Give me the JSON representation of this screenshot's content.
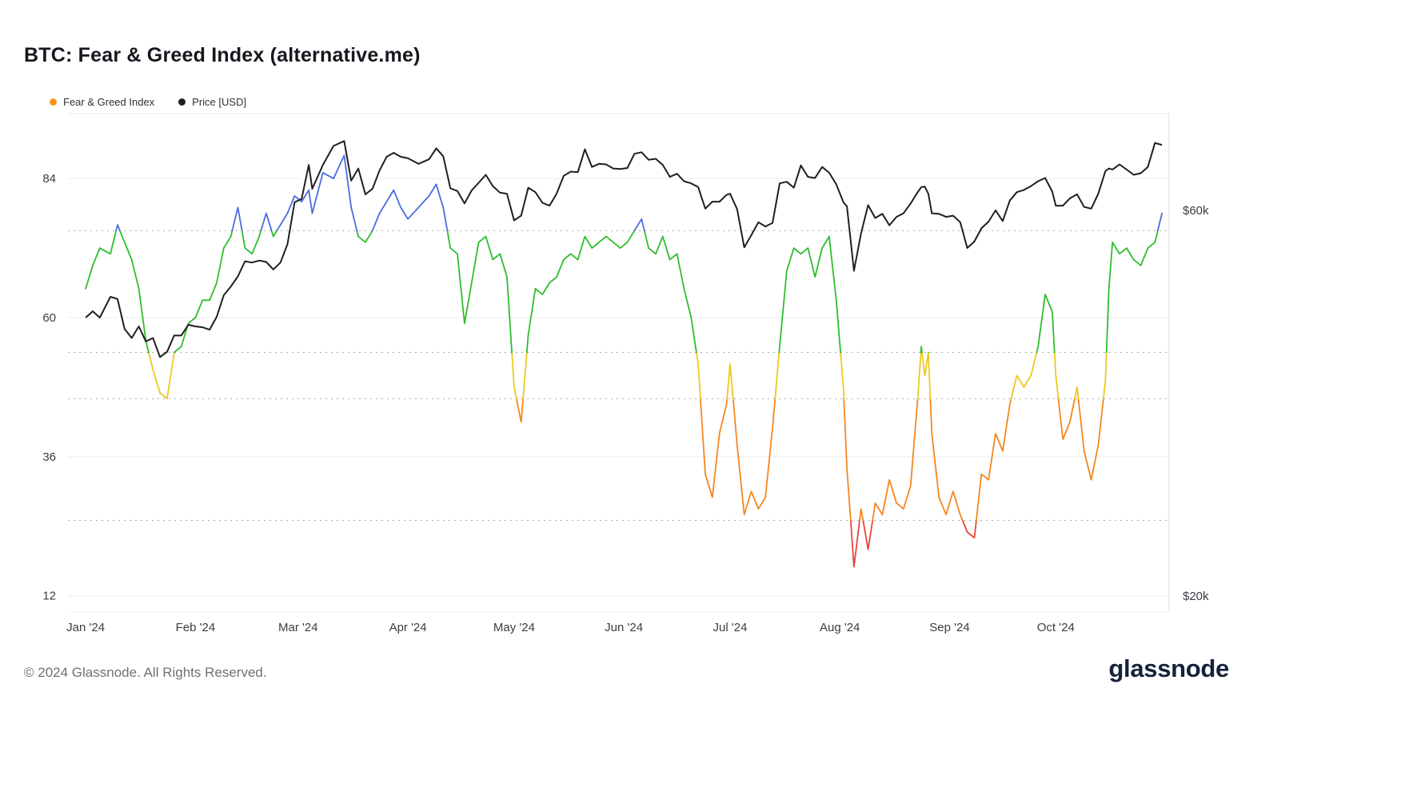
{
  "header": {
    "title": "BTC: Fear & Greed Index (alternative.me)"
  },
  "legend": {
    "items": [
      {
        "label": "Fear & Greed Index",
        "color": "#f7941d"
      },
      {
        "label": "Price [USD]",
        "color": "#1f1f1f"
      }
    ]
  },
  "footer": {
    "copyright": "© 2024 Glassnode. All Rights Reserved.",
    "brand": "glassnode"
  },
  "chart_data": {
    "type": "line",
    "title": "BTC: Fear & Greed Index (alternative.me)",
    "x_domain": [
      "2023-12-27",
      "2024-11-02"
    ],
    "x_ticks": [
      {
        "date": "2024-01-01",
        "label": "Jan '24"
      },
      {
        "date": "2024-02-01",
        "label": "Feb '24"
      },
      {
        "date": "2024-03-01",
        "label": "Mar '24"
      },
      {
        "date": "2024-04-01",
        "label": "Apr '24"
      },
      {
        "date": "2024-05-01",
        "label": "May '24"
      },
      {
        "date": "2024-06-01",
        "label": "Jun '24"
      },
      {
        "date": "2024-07-01",
        "label": "Jul '24"
      },
      {
        "date": "2024-08-01",
        "label": "Aug '24"
      },
      {
        "date": "2024-09-01",
        "label": "Sep '24"
      },
      {
        "date": "2024-10-01",
        "label": "Oct '24"
      }
    ],
    "left_axis": {
      "name": "Fear & Greed Index",
      "ticks": [
        84,
        60,
        36,
        12
      ],
      "range": [
        9.2,
        95.2
      ],
      "grid": "solid"
    },
    "right_axis": {
      "name": "Price [USD]",
      "scale": "log",
      "range_k": [
        19.1,
        79.05
      ],
      "ticks": [
        {
          "value_k": 60,
          "label": "$60k"
        },
        {
          "value_k": 20,
          "label": "$20k"
        }
      ]
    },
    "fgi_bands": {
      "thresholds": [
        25,
        46,
        54,
        75
      ],
      "band_order": [
        "extreme_fear",
        "fear",
        "neutral",
        "greed",
        "extreme_greed"
      ],
      "colors": {
        "extreme_fear": "#e8463c",
        "fear": "#f5861f",
        "neutral": "#eec81f",
        "greed": "#2dbe2d",
        "extreme_greed": "#4a6de0"
      }
    },
    "price_color": "#1f1f1f",
    "grid_color_solid": "#ececec",
    "grid_color_dotted": "#a8a8a8",
    "dates": [
      "2024-01-01",
      "2024-01-03",
      "2024-01-05",
      "2024-01-08",
      "2024-01-10",
      "2024-01-12",
      "2024-01-14",
      "2024-01-16",
      "2024-01-18",
      "2024-01-20",
      "2024-01-22",
      "2024-01-24",
      "2024-01-26",
      "2024-01-28",
      "2024-01-30",
      "2024-02-01",
      "2024-02-03",
      "2024-02-05",
      "2024-02-07",
      "2024-02-09",
      "2024-02-11",
      "2024-02-13",
      "2024-02-15",
      "2024-02-17",
      "2024-02-19",
      "2024-02-21",
      "2024-02-23",
      "2024-02-25",
      "2024-02-27",
      "2024-02-29",
      "2024-03-02",
      "2024-03-04",
      "2024-03-05",
      "2024-03-08",
      "2024-03-11",
      "2024-03-14",
      "2024-03-16",
      "2024-03-18",
      "2024-03-20",
      "2024-03-22",
      "2024-03-24",
      "2024-03-26",
      "2024-03-28",
      "2024-03-30",
      "2024-04-01",
      "2024-04-04",
      "2024-04-07",
      "2024-04-09",
      "2024-04-11",
      "2024-04-13",
      "2024-04-15",
      "2024-04-17",
      "2024-04-19",
      "2024-04-21",
      "2024-04-23",
      "2024-04-25",
      "2024-04-27",
      "2024-04-29",
      "2024-05-01",
      "2024-05-03",
      "2024-05-05",
      "2024-05-07",
      "2024-05-09",
      "2024-05-11",
      "2024-05-13",
      "2024-05-15",
      "2024-05-17",
      "2024-05-19",
      "2024-05-21",
      "2024-05-23",
      "2024-05-25",
      "2024-05-27",
      "2024-05-29",
      "2024-05-31",
      "2024-06-02",
      "2024-06-04",
      "2024-06-06",
      "2024-06-08",
      "2024-06-10",
      "2024-06-12",
      "2024-06-14",
      "2024-06-16",
      "2024-06-18",
      "2024-06-20",
      "2024-06-22",
      "2024-06-24",
      "2024-06-26",
      "2024-06-28",
      "2024-06-30",
      "2024-07-01",
      "2024-07-03",
      "2024-07-05",
      "2024-07-07",
      "2024-07-09",
      "2024-07-11",
      "2024-07-13",
      "2024-07-15",
      "2024-07-17",
      "2024-07-19",
      "2024-07-21",
      "2024-07-23",
      "2024-07-25",
      "2024-07-27",
      "2024-07-29",
      "2024-07-31",
      "2024-08-02",
      "2024-08-03",
      "2024-08-05",
      "2024-08-07",
      "2024-08-09",
      "2024-08-11",
      "2024-08-13",
      "2024-08-15",
      "2024-08-17",
      "2024-08-19",
      "2024-08-21",
      "2024-08-23",
      "2024-08-24",
      "2024-08-25",
      "2024-08-26",
      "2024-08-27",
      "2024-08-29",
      "2024-08-31",
      "2024-09-02",
      "2024-09-04",
      "2024-09-06",
      "2024-09-08",
      "2024-09-10",
      "2024-09-12",
      "2024-09-14",
      "2024-09-16",
      "2024-09-18",
      "2024-09-20",
      "2024-09-22",
      "2024-09-24",
      "2024-09-26",
      "2024-09-28",
      "2024-09-30",
      "2024-10-01",
      "2024-10-03",
      "2024-10-05",
      "2024-10-07",
      "2024-10-09",
      "2024-10-11",
      "2024-10-13",
      "2024-10-15",
      "2024-10-16",
      "2024-10-17",
      "2024-10-19",
      "2024-10-21",
      "2024-10-23",
      "2024-10-25",
      "2024-10-27",
      "2024-10-29",
      "2024-10-31"
    ],
    "fgi": [
      65,
      69,
      72,
      71,
      76,
      73,
      70,
      65,
      56,
      51,
      47,
      46,
      54,
      55,
      59,
      60,
      63,
      63,
      66,
      72,
      74,
      79,
      72,
      71,
      74,
      78,
      74,
      76,
      78,
      81,
      80,
      82,
      78,
      85,
      84,
      88,
      79,
      74,
      73,
      75,
      78,
      80,
      82,
      79,
      77,
      79,
      81,
      83,
      79,
      72,
      71,
      59,
      66,
      73,
      74,
      70,
      71,
      67,
      48,
      42,
      57,
      65,
      64,
      66,
      67,
      70,
      71,
      70,
      74,
      72,
      73,
      74,
      73,
      72,
      73,
      75,
      77,
      72,
      71,
      74,
      70,
      71,
      65,
      60,
      52,
      33,
      29,
      40,
      45,
      52,
      38,
      26,
      30,
      27,
      29,
      41,
      55,
      68,
      72,
      71,
      72,
      67,
      72,
      74,
      63,
      48,
      34,
      17,
      27,
      20,
      28,
      26,
      32,
      28,
      27,
      31,
      46,
      55,
      50,
      54,
      40,
      29,
      26,
      30,
      26,
      23,
      22,
      33,
      32,
      40,
      37,
      45,
      50,
      48,
      50,
      55,
      64,
      61,
      50,
      39,
      42,
      48,
      37,
      32,
      38,
      49,
      65,
      73,
      71,
      72,
      70,
      69,
      72,
      73,
      78
    ],
    "price_k": [
      44.2,
      45.0,
      44.2,
      46.9,
      46.6,
      42.8,
      41.7,
      43.1,
      41.3,
      41.7,
      39.5,
      40.1,
      42.0,
      42.0,
      43.3,
      43.1,
      43.0,
      42.7,
      44.3,
      47.1,
      48.3,
      49.7,
      51.9,
      51.7,
      52.0,
      51.8,
      50.7,
      51.7,
      54.5,
      61.4,
      62.0,
      68.3,
      63.8,
      68.3,
      72.1,
      73.1,
      65.3,
      67.6,
      62.8,
      63.8,
      67.2,
      69.9,
      70.7,
      69.9,
      69.6,
      68.5,
      69.4,
      71.6,
      70.0,
      63.9,
      63.4,
      61.2,
      63.5,
      64.9,
      66.4,
      64.3,
      63.1,
      62.9,
      58.3,
      59.1,
      64.0,
      63.2,
      61.3,
      60.8,
      62.9,
      66.2,
      67.0,
      66.9,
      71.4,
      67.9,
      68.5,
      68.4,
      67.6,
      67.5,
      67.7,
      70.5,
      70.8,
      69.3,
      69.5,
      68.3,
      66.0,
      66.6,
      65.2,
      64.8,
      64.1,
      60.3,
      61.5,
      61.5,
      62.7,
      62.9,
      60.2,
      54.0,
      55.9,
      58.0,
      57.3,
      57.9,
      64.8,
      65.1,
      64.0,
      68.2,
      66.0,
      65.8,
      67.9,
      66.8,
      64.6,
      61.4,
      60.7,
      50.5,
      56.2,
      60.9,
      58.7,
      59.4,
      57.5,
      58.9,
      59.5,
      61.2,
      63.2,
      64.1,
      64.2,
      62.9,
      59.5,
      59.4,
      58.9,
      59.1,
      58.0,
      53.9,
      54.9,
      57.0,
      58.1,
      60.0,
      58.2,
      61.7,
      63.2,
      63.6,
      64.3,
      65.2,
      65.8,
      63.3,
      60.8,
      60.8,
      62.1,
      62.8,
      60.6,
      60.3,
      62.9,
      67.1,
      67.6,
      67.4,
      68.4,
      67.4,
      66.4,
      66.7,
      67.9,
      72.7,
      72.3
    ]
  }
}
